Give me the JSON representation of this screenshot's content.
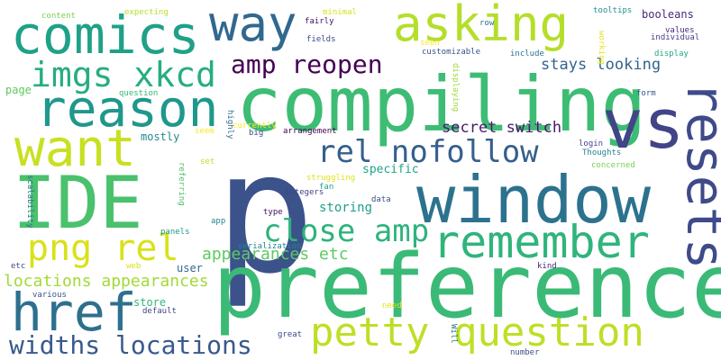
{
  "words": [
    {
      "text": "p",
      "color": "#3b528b"
    },
    {
      "text": "preference",
      "color": "#3aba76"
    },
    {
      "text": "compiling",
      "color": "#3dbc74"
    },
    {
      "text": "window",
      "color": "#2c728e"
    },
    {
      "text": "IDE",
      "color": "#4ac16d"
    },
    {
      "text": "vs",
      "color": "#414487"
    },
    {
      "text": "resets",
      "color": "#3e4a89"
    },
    {
      "text": "comics",
      "color": "#1fa187"
    },
    {
      "text": "asking",
      "color": "#b5de2b"
    },
    {
      "text": "way",
      "color": "#31688e"
    },
    {
      "text": "reason",
      "color": "#1f988b"
    },
    {
      "text": "want",
      "color": "#c8e020"
    },
    {
      "text": "remember",
      "color": "#2fb47c"
    },
    {
      "text": "href",
      "color": "#2d708e"
    },
    {
      "text": "imgs xkcd",
      "color": "#26ad81"
    },
    {
      "text": "amp reopen",
      "color": "#440154"
    },
    {
      "text": "petty question",
      "color": "#bddf26"
    },
    {
      "text": "png rel",
      "color": "#d8e219"
    },
    {
      "text": "rel nofollow",
      "color": "#355f8d"
    },
    {
      "text": "close amp",
      "color": "#2eb37c"
    },
    {
      "text": "widths locations",
      "color": "#38598c"
    },
    {
      "text": "appearances etc",
      "color": "#5ec962"
    },
    {
      "text": "locations appearances",
      "color": "#a2da37"
    },
    {
      "text": "stays looking",
      "color": "#32648e"
    },
    {
      "text": "secret switch",
      "color": "#481a6c"
    },
    {
      "text": "storing",
      "color": "#1f9e89"
    },
    {
      "text": "specific",
      "color": "#20a486"
    },
    {
      "text": "mostly",
      "color": "#23898e"
    },
    {
      "text": "booleans",
      "color": "#482878"
    },
    {
      "text": "customizable",
      "color": "#3b528b"
    },
    {
      "text": "content",
      "color": "#7ad151"
    },
    {
      "text": "expecting",
      "color": "#b5de2b"
    },
    {
      "text": "tooltips",
      "color": "#21918c"
    },
    {
      "text": "minimal",
      "color": "#d8e219"
    },
    {
      "text": "fairly",
      "color": "#471365"
    },
    {
      "text": "fields",
      "color": "#3e4a89"
    },
    {
      "text": "row",
      "color": "#2c728e"
    },
    {
      "text": "seen",
      "color": "#fde725"
    },
    {
      "text": "values",
      "color": "#472d7b"
    },
    {
      "text": "individual",
      "color": "#433e85"
    },
    {
      "text": "display",
      "color": "#22a884"
    },
    {
      "text": "include",
      "color": "#2a788e"
    },
    {
      "text": "working",
      "color": "#e5e419"
    },
    {
      "text": "displaying",
      "color": "#a0da39"
    },
    {
      "text": "form",
      "color": "#38598c"
    },
    {
      "text": "page",
      "color": "#5ec962"
    },
    {
      "text": "question",
      "color": "#35b779"
    },
    {
      "text": "highly",
      "color": "#2c728e"
    },
    {
      "text": "currently",
      "color": "#fde725"
    },
    {
      "text": "big",
      "color": "#3e4a89"
    },
    {
      "text": "arrangement",
      "color": "#440154"
    },
    {
      "text": "seem",
      "color": "#fde725"
    },
    {
      "text": "login",
      "color": "#414487"
    },
    {
      "text": "Thoughts",
      "color": "#26828e"
    },
    {
      "text": "concerned",
      "color": "#7ad151"
    },
    {
      "text": "set",
      "color": "#c2df23"
    },
    {
      "text": "referring",
      "color": "#4ac16d"
    },
    {
      "text": "struggling",
      "color": "#dde318"
    },
    {
      "text": "fan",
      "color": "#1f9e89"
    },
    {
      "text": "integers",
      "color": "#414487"
    },
    {
      "text": "data",
      "color": "#3b528b"
    },
    {
      "text": "scalability",
      "color": "#2c728e"
    },
    {
      "text": "type",
      "color": "#471063"
    },
    {
      "text": "app",
      "color": "#25848e"
    },
    {
      "text": "panels",
      "color": "#1f988b"
    },
    {
      "text": "serialization",
      "color": "#25848e"
    },
    {
      "text": "etc",
      "color": "#3e4a89"
    },
    {
      "text": "web",
      "color": "#d8e219"
    },
    {
      "text": "user",
      "color": "#31688e"
    },
    {
      "text": "kind",
      "color": "#482878"
    },
    {
      "text": "various",
      "color": "#3b528b"
    },
    {
      "text": "store",
      "color": "#35b779"
    },
    {
      "text": "default",
      "color": "#414487"
    },
    {
      "text": "need",
      "color": "#e2e418"
    },
    {
      "text": "Will",
      "color": "#2a788e"
    },
    {
      "text": "great",
      "color": "#3e4a89"
    },
    {
      "text": "number",
      "color": "#3b528b"
    }
  ]
}
